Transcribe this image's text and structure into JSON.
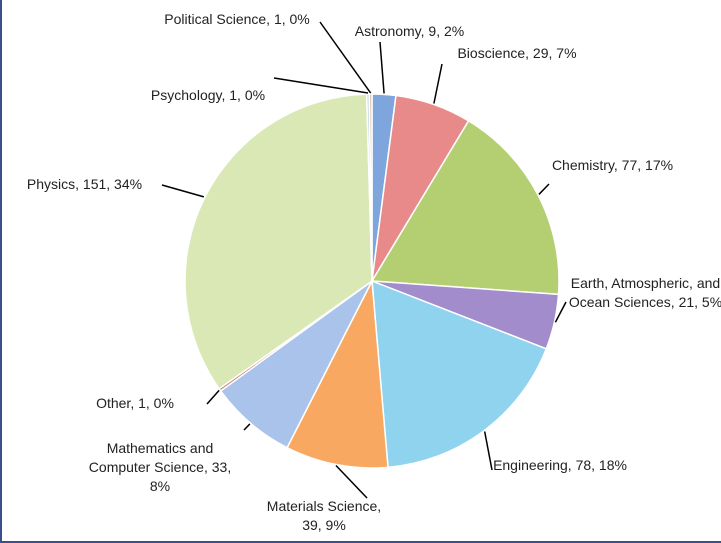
{
  "chart_data": {
    "type": "pie",
    "categories": [
      "Astronomy",
      "Bioscience",
      "Chemistry",
      "Earth, Atmospheric, and Ocean Sciences",
      "Engineering",
      "Materials Science",
      "Mathematics and Computer Science",
      "Other",
      "Physics",
      "Psychology",
      "Political Science"
    ],
    "values": [
      9,
      29,
      77,
      21,
      78,
      39,
      33,
      1,
      151,
      1,
      1
    ],
    "value_labels": [
      "Astronomy, 9, 2%",
      "Bioscience, 29, 7%",
      "Chemistry, 77, 17%",
      "Earth, Atmospheric, and Ocean Sciences, 21, 5%",
      "Engineering, 78, 18%",
      "Materials Science, 39, 9%",
      "Mathematics and Computer Science, 33, 8%",
      "Other, 1, 0%",
      "Physics, 151, 34%",
      "Psychology, 1, 0%",
      "Political Science, 1, 0%"
    ],
    "colors": [
      "#7ea6dc",
      "#e88a8a",
      "#b3cf72",
      "#a38ccc",
      "#8fd3ee",
      "#f8a860",
      "#a9c3ea",
      "#c77a7a",
      "#dae8b5",
      "#c7d6ea",
      "#d8c4a4"
    ]
  }
}
